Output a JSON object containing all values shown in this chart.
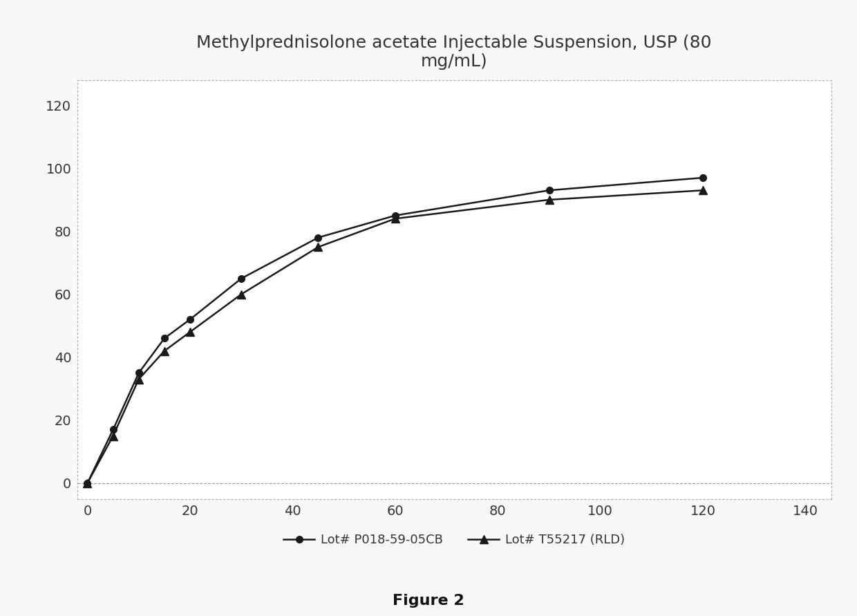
{
  "title": "Methylprednisolone acetate Injectable Suspension, USP (80\nmg/mL)",
  "figure_label": "Figure 2",
  "series": [
    {
      "label": "Lot# P018-59-05CB",
      "x": [
        0,
        5,
        10,
        15,
        20,
        30,
        45,
        60,
        90,
        120
      ],
      "y": [
        0,
        17,
        35,
        46,
        52,
        65,
        78,
        85,
        93,
        97
      ],
      "color": "#1a1a1a",
      "marker": "o",
      "markersize": 7,
      "linewidth": 1.8
    },
    {
      "label": "Lot# T55217 (RLD)",
      "x": [
        0,
        5,
        10,
        15,
        20,
        30,
        45,
        60,
        90,
        120
      ],
      "y": [
        0,
        15,
        33,
        42,
        48,
        60,
        75,
        84,
        90,
        93
      ],
      "color": "#1a1a1a",
      "marker": "^",
      "markersize": 9,
      "linewidth": 1.8
    }
  ],
  "xlim": [
    -2,
    145
  ],
  "ylim": [
    -5,
    128
  ],
  "xticks": [
    0,
    20,
    40,
    60,
    80,
    100,
    120,
    140
  ],
  "yticks": [
    0,
    20,
    40,
    60,
    80,
    100,
    120
  ],
  "background_color": "#f8f8f8",
  "plot_bg_color": "#ffffff",
  "title_fontsize": 18,
  "tick_fontsize": 14,
  "legend_fontsize": 13,
  "figure_label_fontsize": 16,
  "figure_label_fontweight": "bold"
}
